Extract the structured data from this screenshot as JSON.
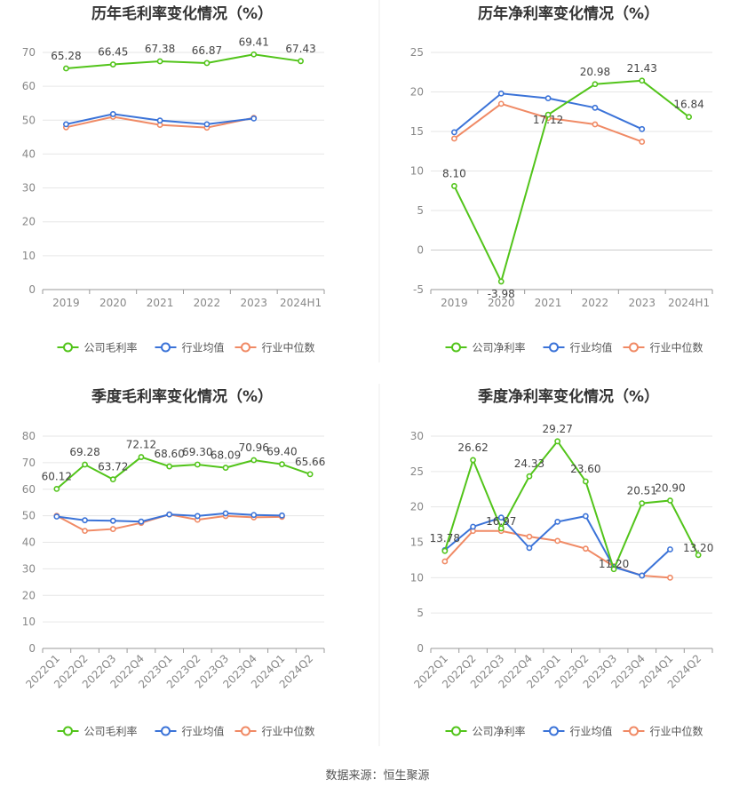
{
  "colors": {
    "company": "#52c41a",
    "industry_avg": "#3b73d8",
    "industry_median": "#f08a65",
    "grid": "#e6e6e6",
    "axis": "#999999",
    "tick_text": "#888888",
    "title_text": "#333333",
    "label_text": "#444444"
  },
  "source_text": "数据来源：恒生聚源",
  "chart_data": [
    {
      "type": "line",
      "title": "历年毛利率变化情况（%）",
      "categories": [
        "2019",
        "2020",
        "2021",
        "2022",
        "2023",
        "2024H1"
      ],
      "ylim": [
        0,
        70
      ],
      "yticks": [
        0,
        10,
        20,
        30,
        40,
        50,
        60,
        70
      ],
      "rotate_x": false,
      "legend": [
        "公司毛利率",
        "行业均值",
        "行业中位数"
      ],
      "series": [
        {
          "name": "公司毛利率",
          "role": "company",
          "values": [
            65.28,
            66.45,
            67.38,
            66.87,
            69.41,
            67.43
          ],
          "labels": [
            "65.28",
            "66.45",
            "67.38",
            "66.87",
            "69.41",
            "67.43"
          ]
        },
        {
          "name": "行业均值",
          "role": "industry_avg",
          "values": [
            48.8,
            51.8,
            49.9,
            48.8,
            50.5,
            null
          ]
        },
        {
          "name": "行业中位数",
          "role": "industry_median",
          "values": [
            47.9,
            51.0,
            48.6,
            47.8,
            50.7,
            null
          ]
        }
      ]
    },
    {
      "type": "line",
      "title": "历年净利率变化情况（%）",
      "categories": [
        "2019",
        "2020",
        "2021",
        "2022",
        "2023",
        "2024H1"
      ],
      "ylim": [
        -5,
        25
      ],
      "yticks": [
        -5,
        0,
        5,
        10,
        15,
        20,
        25
      ],
      "rotate_x": false,
      "legend": [
        "公司净利率",
        "行业均值",
        "行业中位数"
      ],
      "series": [
        {
          "name": "公司净利率",
          "role": "company",
          "values": [
            8.1,
            -3.98,
            17.12,
            20.98,
            21.43,
            16.84
          ],
          "labels": [
            "8.10",
            "-3.98",
            "17.12",
            "20.98",
            "21.43",
            "16.84"
          ]
        },
        {
          "name": "行业均值",
          "role": "industry_avg",
          "values": [
            14.9,
            19.8,
            19.2,
            18.0,
            15.3,
            null
          ]
        },
        {
          "name": "行业中位数",
          "role": "industry_median",
          "values": [
            14.1,
            18.5,
            16.7,
            15.9,
            13.7,
            null
          ]
        }
      ]
    },
    {
      "type": "line",
      "title": "季度毛利率变化情况（%）",
      "categories": [
        "2022Q1",
        "2022Q2",
        "2022Q3",
        "2022Q4",
        "2023Q1",
        "2023Q2",
        "2023Q3",
        "2023Q4",
        "2024Q1",
        "2024Q2"
      ],
      "ylim": [
        0,
        80
      ],
      "yticks": [
        0,
        10,
        20,
        30,
        40,
        50,
        60,
        70,
        80
      ],
      "rotate_x": true,
      "legend": [
        "公司毛利率",
        "行业均值",
        "行业中位数"
      ],
      "series": [
        {
          "name": "公司毛利率",
          "role": "company",
          "values": [
            60.12,
            69.28,
            63.72,
            72.12,
            68.6,
            69.3,
            68.09,
            70.96,
            69.4,
            65.66
          ],
          "labels": [
            "60.12",
            "69.28",
            "63.72",
            "72.12",
            "68.60",
            "69.30",
            "68.09",
            "70.96",
            "69.40",
            "65.66"
          ]
        },
        {
          "name": "行业均值",
          "role": "industry_avg",
          "values": [
            49.7,
            48.3,
            48.1,
            47.8,
            50.5,
            49.9,
            50.9,
            50.3,
            50.1,
            null
          ]
        },
        {
          "name": "行业中位数",
          "role": "industry_median",
          "values": [
            50.0,
            44.3,
            45.0,
            47.3,
            50.5,
            48.5,
            49.9,
            49.4,
            49.6,
            null
          ]
        }
      ]
    },
    {
      "type": "line",
      "title": "季度净利率变化情况（%）",
      "categories": [
        "2022Q1",
        "2022Q2",
        "2022Q3",
        "2022Q4",
        "2023Q1",
        "2023Q2",
        "2023Q3",
        "2023Q4",
        "2024Q1",
        "2024Q2"
      ],
      "ylim": [
        0,
        30
      ],
      "yticks": [
        0,
        5,
        10,
        15,
        20,
        25,
        30
      ],
      "rotate_x": true,
      "legend": [
        "公司净利率",
        "行业均值",
        "行业中位数"
      ],
      "series": [
        {
          "name": "公司净利率",
          "role": "company",
          "values": [
            13.78,
            26.62,
            16.97,
            24.33,
            29.27,
            23.6,
            11.2,
            20.51,
            20.9,
            13.2
          ],
          "labels": [
            "13.78",
            "26.62",
            "16.97",
            "24.33",
            "29.27",
            "23.60",
            "11.20",
            "20.51",
            "20.90",
            "13.20"
          ]
        },
        {
          "name": "行业均值",
          "role": "industry_avg",
          "values": [
            13.9,
            17.2,
            18.5,
            14.2,
            17.9,
            18.7,
            11.5,
            10.3,
            14.0,
            null
          ]
        },
        {
          "name": "行业中位数",
          "role": "industry_median",
          "values": [
            12.3,
            16.6,
            16.6,
            15.8,
            15.2,
            14.1,
            11.6,
            10.3,
            10.0,
            null
          ]
        }
      ]
    }
  ]
}
